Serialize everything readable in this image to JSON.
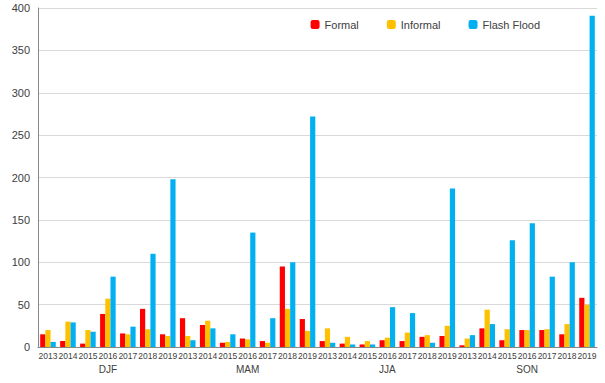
{
  "chart_data": {
    "type": "bar",
    "categories": [
      "2013",
      "2014",
      "2015",
      "2016",
      "2017",
      "2018",
      "2019",
      "2013",
      "2014",
      "2015",
      "2016",
      "2017",
      "2018",
      "2019",
      "2013",
      "2014",
      "2015",
      "2016",
      "2017",
      "2018",
      "2019",
      "2013",
      "2014",
      "2015",
      "2016",
      "2017",
      "2018",
      "2019"
    ],
    "groups": [
      "DJF",
      "MAM",
      "JJA",
      "SON"
    ],
    "series": [
      {
        "name": "Formal",
        "color": "#ff0000",
        "values": [
          15,
          7,
          4,
          39,
          16,
          45,
          15,
          34,
          26,
          5,
          10,
          7,
          95,
          33,
          7,
          4,
          3,
          8,
          7,
          12,
          13,
          2,
          22,
          8,
          20,
          20,
          15,
          58
        ]
      },
      {
        "name": "Informal",
        "color": "#ffc000",
        "values": [
          20,
          30,
          20,
          57,
          15,
          21,
          13,
          13,
          31,
          6,
          9,
          5,
          45,
          19,
          22,
          12,
          7,
          11,
          17,
          14,
          25,
          10,
          44,
          21,
          20,
          21,
          27,
          50
        ]
      },
      {
        "name": "Flash Flood",
        "color": "#00b0f0",
        "values": [
          6,
          29,
          18,
          83,
          24,
          110,
          198,
          8,
          22,
          15,
          135,
          34,
          100,
          272,
          5,
          3,
          3,
          47,
          40,
          5,
          187,
          14,
          27,
          126,
          146,
          83,
          100,
          391
        ]
      }
    ],
    "ylim": [
      0,
      400
    ],
    "yticks": [
      0,
      50,
      100,
      150,
      200,
      250,
      300,
      350,
      400
    ],
    "grid": true,
    "legend": "upper right"
  }
}
